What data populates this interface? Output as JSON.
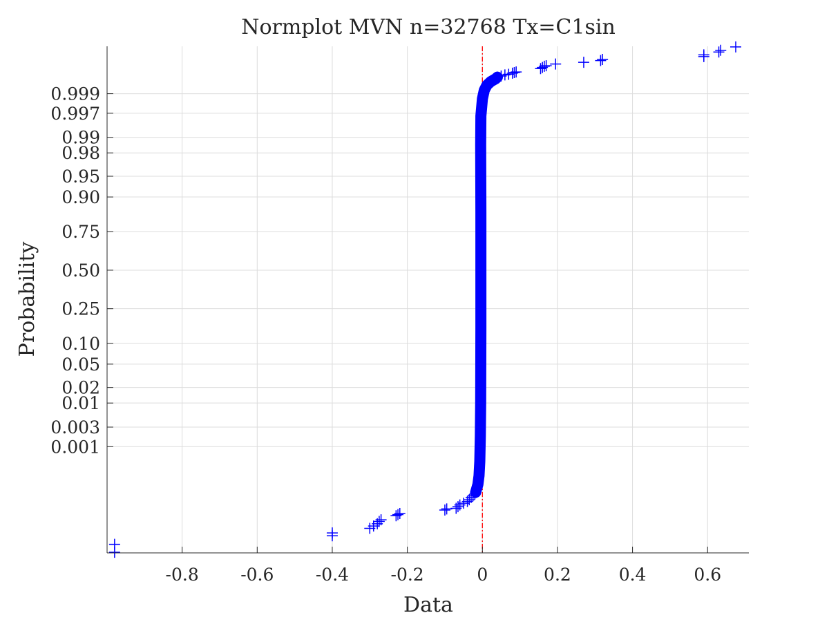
{
  "chart_data": {
    "type": "scatter",
    "title": "Normplot MVN n=32768 Tx=C1sin",
    "xlabel": "Data",
    "ylabel": "Probability",
    "xlim": [
      -1.0,
      0.71
    ],
    "ylim_probit": [
      -4.95,
      3.92
    ],
    "y_scale": "normal-probability",
    "grid": true,
    "marker": "+",
    "marker_color": "#0000ff",
    "reference_line": {
      "x": 0,
      "color": "#ff0000",
      "style": "dash-dot"
    },
    "x_ticks": [
      {
        "value": -0.8,
        "label": "-0.8"
      },
      {
        "value": -0.6,
        "label": "-0.6"
      },
      {
        "value": -0.4,
        "label": "-0.4"
      },
      {
        "value": -0.2,
        "label": "-0.2"
      },
      {
        "value": 0,
        "label": "0"
      },
      {
        "value": 0.2,
        "label": "0.2"
      },
      {
        "value": 0.4,
        "label": "0.4"
      },
      {
        "value": 0.6,
        "label": "0.6"
      }
    ],
    "y_ticks": [
      {
        "p": 0.001,
        "label": "0.001"
      },
      {
        "p": 0.003,
        "label": "0.003"
      },
      {
        "p": 0.01,
        "label": "0.01"
      },
      {
        "p": 0.02,
        "label": "0.02"
      },
      {
        "p": 0.05,
        "label": "0.05"
      },
      {
        "p": 0.1,
        "label": "0.10"
      },
      {
        "p": 0.25,
        "label": "0.25"
      },
      {
        "p": 0.5,
        "label": "0.50"
      },
      {
        "p": 0.75,
        "label": "0.75"
      },
      {
        "p": 0.9,
        "label": "0.90"
      },
      {
        "p": 0.95,
        "label": "0.95"
      },
      {
        "p": 0.98,
        "label": "0.98"
      },
      {
        "p": 0.99,
        "label": "0.99"
      },
      {
        "p": 0.997,
        "label": "0.997"
      },
      {
        "p": 0.999,
        "label": "0.999"
      }
    ],
    "points": [
      {
        "x": -0.98,
        "z": -4.94
      },
      {
        "x": -0.98,
        "z": -4.8
      },
      {
        "x": -0.4,
        "z": -4.65
      },
      {
        "x": -0.4,
        "z": -4.6
      },
      {
        "x": -0.3,
        "z": -4.52
      },
      {
        "x": -0.29,
        "z": -4.48
      },
      {
        "x": -0.28,
        "z": -4.44
      },
      {
        "x": -0.275,
        "z": -4.4
      },
      {
        "x": -0.27,
        "z": -4.37
      },
      {
        "x": -0.23,
        "z": -4.3
      },
      {
        "x": -0.225,
        "z": -4.28
      },
      {
        "x": -0.22,
        "z": -4.26
      },
      {
        "x": -0.1,
        "z": -4.2
      },
      {
        "x": -0.095,
        "z": -4.18
      },
      {
        "x": -0.07,
        "z": -4.17
      },
      {
        "x": -0.065,
        "z": -4.14
      },
      {
        "x": -0.06,
        "z": -4.11
      },
      {
        "x": -0.05,
        "z": -4.08
      },
      {
        "x": -0.04,
        "z": -4.05
      },
      {
        "x": -0.035,
        "z": -4.02
      },
      {
        "x": -0.03,
        "z": -3.98
      },
      {
        "x": -0.025,
        "z": -3.95
      },
      {
        "x": -0.02,
        "z": -3.92
      },
      {
        "x": -0.018,
        "z": -3.89
      },
      {
        "x": 0.04,
        "z": 3.38
      },
      {
        "x": 0.05,
        "z": 3.4
      },
      {
        "x": 0.06,
        "z": 3.42
      },
      {
        "x": 0.07,
        "z": 3.43
      },
      {
        "x": 0.08,
        "z": 3.45
      },
      {
        "x": 0.085,
        "z": 3.46
      },
      {
        "x": 0.09,
        "z": 3.47
      },
      {
        "x": 0.155,
        "z": 3.53
      },
      {
        "x": 0.16,
        "z": 3.55
      },
      {
        "x": 0.165,
        "z": 3.57
      },
      {
        "x": 0.17,
        "z": 3.58
      },
      {
        "x": 0.195,
        "z": 3.61
      },
      {
        "x": 0.27,
        "z": 3.64
      },
      {
        "x": 0.315,
        "z": 3.67
      },
      {
        "x": 0.32,
        "z": 3.69
      },
      {
        "x": 0.59,
        "z": 3.74
      },
      {
        "x": 0.59,
        "z": 3.77
      },
      {
        "x": 0.63,
        "z": 3.82
      },
      {
        "x": 0.635,
        "z": 3.85
      },
      {
        "x": 0.675,
        "z": 3.91
      }
    ],
    "core_curve": [
      {
        "x": -0.018,
        "z": -3.89
      },
      {
        "x": -0.012,
        "z": -3.75
      },
      {
        "x": -0.009,
        "z": -3.6
      },
      {
        "x": -0.007,
        "z": -3.35
      },
      {
        "x": -0.0055,
        "z": -2.9
      },
      {
        "x": -0.0045,
        "z": -2.3
      },
      {
        "x": -0.004,
        "z": -1.0
      },
      {
        "x": -0.004,
        "z": 0.0
      },
      {
        "x": -0.004,
        "z": 1.0
      },
      {
        "x": -0.0045,
        "z": 2.2
      },
      {
        "x": -0.004,
        "z": 2.7
      },
      {
        "x": 0.0,
        "z": 3.0
      },
      {
        "x": 0.005,
        "z": 3.15
      },
      {
        "x": 0.012,
        "z": 3.24
      },
      {
        "x": 0.022,
        "z": 3.3
      },
      {
        "x": 0.035,
        "z": 3.35
      },
      {
        "x": 0.04,
        "z": 3.38
      }
    ]
  }
}
